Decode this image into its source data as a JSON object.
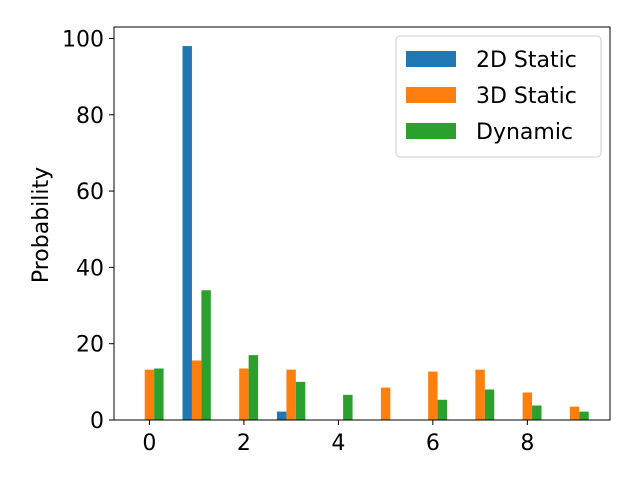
{
  "chart_data": {
    "type": "bar",
    "title": "",
    "xlabel": "",
    "ylabel": "Probability",
    "categories": [
      0,
      1,
      2,
      3,
      4,
      5,
      6,
      7,
      8,
      9
    ],
    "series": [
      {
        "name": "2D Static",
        "color": "#1f77b4",
        "values": [
          0,
          98,
          0,
          2.2,
          0,
          0,
          0,
          0,
          0,
          0
        ]
      },
      {
        "name": "3D Static",
        "color": "#ff7f0e",
        "values": [
          13.2,
          15.6,
          13.5,
          13.2,
          0,
          8.5,
          12.7,
          13.2,
          7.2,
          3.5
        ]
      },
      {
        "name": "Dynamic",
        "color": "#2ca02c",
        "values": [
          13.5,
          34,
          17,
          10,
          6.6,
          0,
          5.3,
          8,
          3.8,
          2.2
        ]
      }
    ],
    "xlim": [
      -0.75,
      9.75
    ],
    "ylim": [
      0,
      103
    ],
    "xticks": [
      0,
      2,
      4,
      6,
      8
    ],
    "yticks": [
      0,
      20,
      40,
      60,
      80,
      100
    ],
    "grid": false,
    "legend_position": "top-right"
  }
}
